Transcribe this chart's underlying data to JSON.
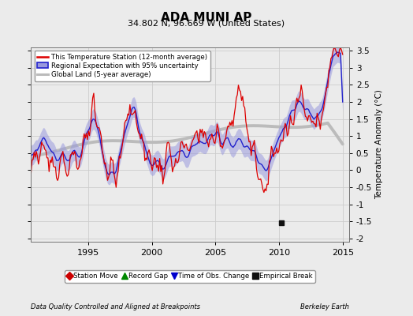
{
  "title": "ADA MUNI AP",
  "subtitle": "34.802 N, 96.669 W (United States)",
  "ylabel": "Temperature Anomaly (°C)",
  "footer_left": "Data Quality Controlled and Aligned at Breakpoints",
  "footer_right": "Berkeley Earth",
  "xlim": [
    1990.5,
    2015.5
  ],
  "ylim": [
    -2.1,
    3.6
  ],
  "yticks": [
    -2,
    -1.5,
    -1,
    -0.5,
    0,
    0.5,
    1,
    1.5,
    2,
    2.5,
    3,
    3.5
  ],
  "xticks": [
    1995,
    2000,
    2005,
    2010,
    2015
  ],
  "grid_color": "#cccccc",
  "bg_color": "#ebebeb",
  "station_color": "#dd0000",
  "regional_color": "#2222cc",
  "regional_fill": "#9999dd",
  "global_color": "#bbbbbb",
  "empirical_break_x": 2010.2,
  "empirical_break_y": -1.55,
  "legend_items": [
    {
      "label": "This Temperature Station (12-month average)",
      "color": "#dd0000",
      "lw": 2
    },
    {
      "label": "Regional Expectation with 95% uncertainty",
      "color": "#2222cc",
      "fill": "#9999dd",
      "lw": 1.5
    },
    {
      "label": "Global Land (5-year average)",
      "color": "#bbbbbb",
      "lw": 2.5
    }
  ],
  "marker_legend": [
    {
      "label": "Station Move",
      "marker": "D",
      "color": "#cc0000"
    },
    {
      "label": "Record Gap",
      "marker": "^",
      "color": "#008800"
    },
    {
      "label": "Time of Obs. Change",
      "marker": "v",
      "color": "#0000cc"
    },
    {
      "label": "Empirical Break",
      "marker": "s",
      "color": "#111111"
    }
  ]
}
